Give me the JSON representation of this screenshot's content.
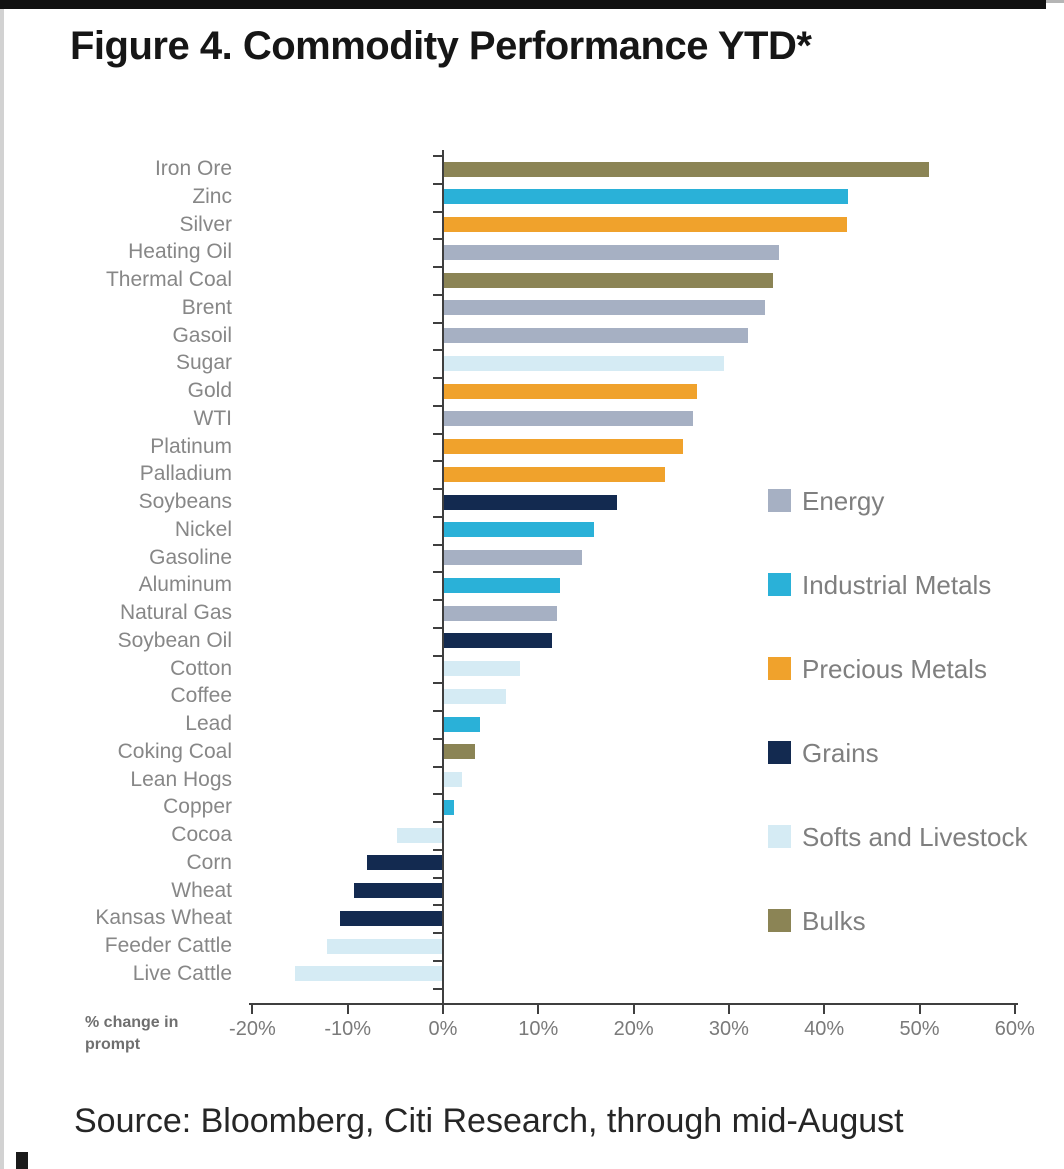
{
  "figure": {
    "title": "Figure 4. Commodity Performance YTD*",
    "source": "Source: Bloomberg, Citi Research, through mid-August"
  },
  "chart_data": {
    "type": "bar",
    "orientation": "horizontal",
    "title": "Figure 4. Commodity Performance YTD*",
    "xlabel": "% change in prompt",
    "xlabel_lines": [
      "% change in",
      "prompt"
    ],
    "ylabel": "",
    "xlim": [
      -20,
      60
    ],
    "x_tick_values": [
      -20,
      -10,
      0,
      10,
      20,
      30,
      40,
      50,
      60
    ],
    "x_tick_labels": [
      "-20%",
      "-10%",
      "0%",
      "10%",
      "20%",
      "30%",
      "40%",
      "50%",
      "60%"
    ],
    "grid": false,
    "legend_position": "right",
    "legend": [
      {
        "name": "Energy",
        "color": "#a6b0c3"
      },
      {
        "name": "Industrial Metals",
        "color": "#2ab1d8"
      },
      {
        "name": "Precious Metals",
        "color": "#f0a22c"
      },
      {
        "name": "Grains",
        "color": "#132a50"
      },
      {
        "name": "Softs and Livestock",
        "color": "#d5ebf4"
      },
      {
        "name": "Bulks",
        "color": "#8b8455"
      }
    ],
    "bars": [
      {
        "label": "Iron Ore",
        "value": 51.0,
        "category": "Bulks"
      },
      {
        "label": "Zinc",
        "value": 42.5,
        "category": "Industrial Metals"
      },
      {
        "label": "Silver",
        "value": 42.4,
        "category": "Precious Metals"
      },
      {
        "label": "Heating Oil",
        "value": 35.3,
        "category": "Energy"
      },
      {
        "label": "Thermal Coal",
        "value": 34.6,
        "category": "Bulks"
      },
      {
        "label": "Brent",
        "value": 33.8,
        "category": "Energy"
      },
      {
        "label": "Gasoil",
        "value": 32.0,
        "category": "Energy"
      },
      {
        "label": "Sugar",
        "value": 29.5,
        "category": "Softs and Livestock"
      },
      {
        "label": "Gold",
        "value": 26.7,
        "category": "Precious Metals"
      },
      {
        "label": "WTI",
        "value": 26.2,
        "category": "Energy"
      },
      {
        "label": "Platinum",
        "value": 25.2,
        "category": "Precious Metals"
      },
      {
        "label": "Palladium",
        "value": 23.3,
        "category": "Precious Metals"
      },
      {
        "label": "Soybeans",
        "value": 18.3,
        "category": "Grains"
      },
      {
        "label": "Nickel",
        "value": 15.8,
        "category": "Industrial Metals"
      },
      {
        "label": "Gasoline",
        "value": 14.6,
        "category": "Energy"
      },
      {
        "label": "Aluminum",
        "value": 12.3,
        "category": "Industrial Metals"
      },
      {
        "label": "Natural Gas",
        "value": 12.0,
        "category": "Energy"
      },
      {
        "label": "Soybean Oil",
        "value": 11.4,
        "category": "Grains"
      },
      {
        "label": "Cotton",
        "value": 8.1,
        "category": "Softs and Livestock"
      },
      {
        "label": "Coffee",
        "value": 6.6,
        "category": "Softs and Livestock"
      },
      {
        "label": "Lead",
        "value": 3.9,
        "category": "Industrial Metals"
      },
      {
        "label": "Coking Coal",
        "value": 3.4,
        "category": "Bulks"
      },
      {
        "label": "Lean Hogs",
        "value": 2.0,
        "category": "Softs and Livestock"
      },
      {
        "label": "Copper",
        "value": 1.2,
        "category": "Industrial Metals"
      },
      {
        "label": "Cocoa",
        "value": -4.8,
        "category": "Softs and Livestock"
      },
      {
        "label": "Corn",
        "value": -8.0,
        "category": "Grains"
      },
      {
        "label": "Wheat",
        "value": -9.3,
        "category": "Grains"
      },
      {
        "label": "Kansas Wheat",
        "value": -10.8,
        "category": "Grains"
      },
      {
        "label": "Feeder Cattle",
        "value": -12.2,
        "category": "Softs and Livestock"
      },
      {
        "label": "Live Cattle",
        "value": -15.5,
        "category": "Softs and Livestock"
      }
    ]
  },
  "colors": {
    "axis": "#3f3f3f",
    "label_text": "#878787",
    "tick_text": "#7a7a7a",
    "legend_text": "#7f7f7f",
    "title_text": "#161616",
    "source_text": "#262626"
  }
}
